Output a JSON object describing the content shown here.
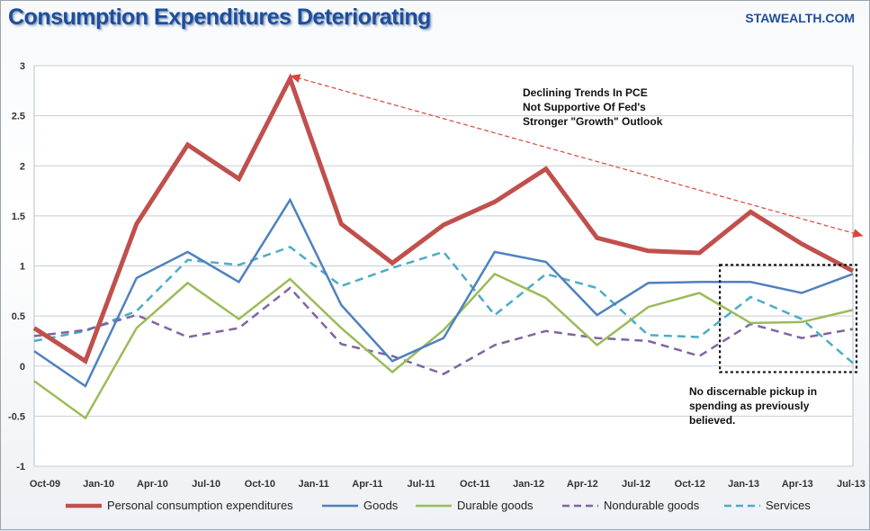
{
  "header": {
    "title": "Consumption Expenditures Deteriorating",
    "brand": "STAWEALTH.COM"
  },
  "annotations": {
    "pce_note": [
      "Declining Trends In PCE",
      "Not Supportive Of Fed's",
      "Stronger \"Growth\" Outlook"
    ],
    "pickup_note": "No discernable pickup in spending as previously believed."
  },
  "colors": {
    "pce": "#c0504d",
    "goods": "#4f81bd",
    "durable": "#9bbb59",
    "nondurable": "#8064a2",
    "services": "#4bacc6",
    "title": "#1f4e99"
  },
  "chart_data": {
    "type": "line",
    "title": "Consumption Expenditures Deteriorating",
    "xlabel": "",
    "ylabel": "",
    "ylim": [
      -1,
      3
    ],
    "yticks": [
      "3",
      "2.5",
      "2",
      "1.5",
      "1",
      "0.5",
      "0",
      "-0.5",
      "-1"
    ],
    "x_tick_labels": [
      "Oct-09",
      "Jan-10",
      "Apr-10",
      "Jul-10",
      "Oct-10",
      "Jan-11",
      "Apr-11",
      "Jul-11",
      "Oct-11",
      "Jan-12",
      "Apr-12",
      "Jul-12",
      "Oct-12",
      "Jan-13",
      "Apr-13",
      "Jul-13"
    ],
    "grid": true,
    "legend_position": "bottom",
    "series": [
      {
        "key": "pce",
        "name": "Personal consumption expenditures",
        "dash": "solid",
        "width": "thick",
        "values": [
          0.38,
          0.05,
          1.42,
          2.21,
          1.87,
          2.87,
          1.42,
          1.03,
          1.41,
          1.64,
          1.97,
          1.28,
          1.15,
          1.13,
          1.54,
          1.22,
          0.95
        ]
      },
      {
        "key": "goods",
        "name": "Goods",
        "dash": "solid",
        "width": "normal",
        "values": [
          0.15,
          -0.2,
          0.88,
          1.14,
          0.84,
          1.66,
          0.61,
          0.05,
          0.28,
          1.14,
          1.04,
          0.51,
          0.83,
          0.84,
          0.84,
          0.73,
          0.92
        ]
      },
      {
        "key": "durable",
        "name": "Durable goods",
        "dash": "solid",
        "width": "normal",
        "values": [
          -0.15,
          -0.52,
          0.38,
          0.83,
          0.47,
          0.87,
          0.38,
          -0.06,
          0.36,
          0.92,
          0.68,
          0.21,
          0.59,
          0.73,
          0.43,
          0.44,
          0.56
        ]
      },
      {
        "key": "nondurable",
        "name": "Nondurable goods",
        "dash": "dash",
        "width": "normal",
        "values": [
          0.3,
          0.36,
          0.51,
          0.29,
          0.38,
          0.78,
          0.22,
          0.1,
          -0.08,
          0.21,
          0.35,
          0.28,
          0.25,
          0.1,
          0.42,
          0.28,
          0.37
        ]
      },
      {
        "key": "services",
        "name": "Services",
        "dash": "dash",
        "width": "normal",
        "values": [
          0.25,
          0.35,
          0.55,
          1.06,
          1.01,
          1.19,
          0.8,
          0.98,
          1.14,
          0.51,
          0.92,
          0.78,
          0.31,
          0.29,
          0.69,
          0.47,
          0.03
        ]
      }
    ],
    "trend_arrow": {
      "from": {
        "x_index": 5,
        "y": 2.9
      },
      "to": {
        "x_index": 16.2,
        "y": 1.3
      }
    },
    "highlight_box": {
      "x_index_from": 13.4,
      "x_index_to": 17.0,
      "y_from": 1.01,
      "y_to": -0.06
    }
  },
  "legend": {
    "items": [
      {
        "label": "Personal consumption expenditures"
      },
      {
        "label": "Goods"
      },
      {
        "label": "Durable goods"
      },
      {
        "label": "Nondurable goods"
      },
      {
        "label": "Services"
      }
    ]
  }
}
